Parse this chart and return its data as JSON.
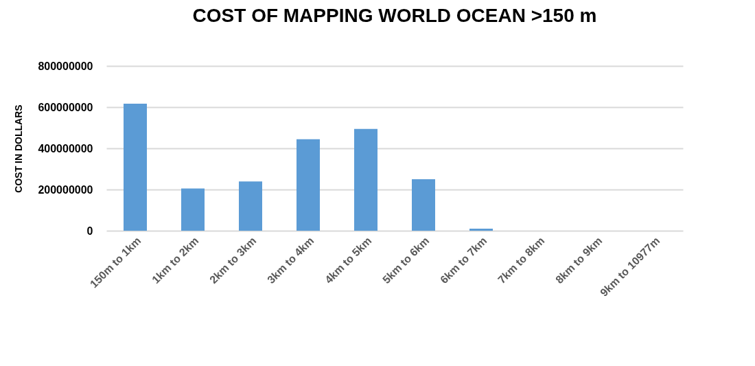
{
  "chart_data": {
    "type": "bar",
    "title": "COST OF MAPPING WORLD OCEAN >150 m",
    "ylabel": "COST IN DOLLARS",
    "categories": [
      "150m to  1km",
      "1km to 2km",
      "2km to 3km",
      "3km to 4km",
      "4km to 5km",
      "5km to 6km",
      "6km to 7km",
      "7km to 8km",
      "8km to 9km",
      "9km to 10977m"
    ],
    "values": [
      617000000,
      205000000,
      239000000,
      444000000,
      494000000,
      250000000,
      10000000,
      0,
      0,
      0
    ],
    "color": "#5b9bd5",
    "ylim": [
      0,
      800000000
    ],
    "yticks": [
      0,
      200000000,
      400000000,
      600000000,
      800000000
    ],
    "grid": "y"
  }
}
